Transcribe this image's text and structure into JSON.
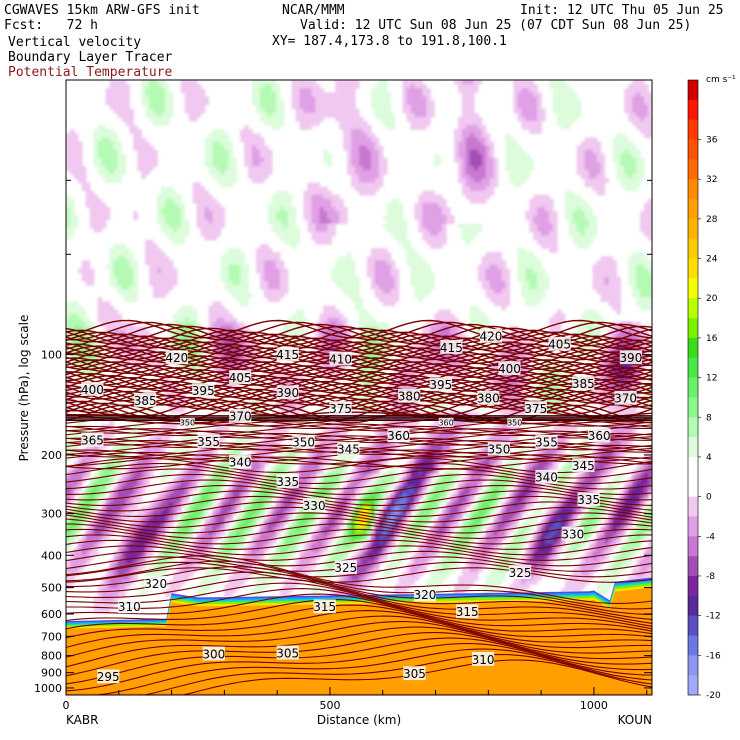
{
  "header": {
    "model_line": "CGWAVES 15km ARW-GFS init",
    "org": "NCAR/MMM",
    "init": "Init: 12 UTC Thu 05 Jun 25",
    "fcst": "Fcst:   72 h",
    "valid": "Valid: 12 UTC Sun 08 Jun 25 (07 CDT Sun 08 Jun 25)",
    "xy": "XY= 187.4,173.8 to 191.8,100.1",
    "field1": "Vertical velocity",
    "field2": "Boundary Layer Tracer",
    "field3": "Potential Temperature"
  },
  "colors": {
    "theta": "#7a0000",
    "field3_text": "#8b1a1a"
  },
  "chart_data": {
    "type": "heatmap",
    "title": "",
    "xlabel": "Distance (km)",
    "ylabel": "Pressure (hPa), log scale",
    "xlim": [
      0,
      1110
    ],
    "ylim": [
      1050,
      15
    ],
    "x_ticks": [
      "0",
      "500",
      "1000"
    ],
    "y_ticks": [
      "100",
      "200",
      "300",
      "400",
      "500",
      "600",
      "700",
      "800",
      "900",
      "1000"
    ],
    "endpoints": {
      "left": "KABR",
      "right": "KOUN"
    },
    "colorbar": {
      "unit": "cm s⁻¹",
      "labels": [
        "36",
        "32",
        "28",
        "24",
        "20",
        "16",
        "12",
        "8",
        "4",
        "0",
        "-4",
        "-8",
        "-12",
        "-16",
        "-20"
      ],
      "bins": [
        {
          "lo": 38,
          "hi": 40,
          "color": "#d00000"
        },
        {
          "lo": 36,
          "hi": 38,
          "color": "#ff1500"
        },
        {
          "lo": 34,
          "hi": 36,
          "color": "#ff3a00"
        },
        {
          "lo": 32,
          "hi": 34,
          "color": "#ff5200"
        },
        {
          "lo": 30,
          "hi": 32,
          "color": "#ff6a00"
        },
        {
          "lo": 28,
          "hi": 30,
          "color": "#ff8c00"
        },
        {
          "lo": 26,
          "hi": 28,
          "color": "#ffa000"
        },
        {
          "lo": 24,
          "hi": 26,
          "color": "#ffb300"
        },
        {
          "lo": 22,
          "hi": 24,
          "color": "#ffcc00"
        },
        {
          "lo": 20,
          "hi": 22,
          "color": "#ffe000"
        },
        {
          "lo": 18,
          "hi": 20,
          "color": "#f5ff00"
        },
        {
          "lo": 16,
          "hi": 18,
          "color": "#b8ff00"
        },
        {
          "lo": 14,
          "hi": 16,
          "color": "#7cf000"
        },
        {
          "lo": 12,
          "hi": 14,
          "color": "#3cdc1c"
        },
        {
          "lo": 10,
          "hi": 12,
          "color": "#48e848"
        },
        {
          "lo": 8,
          "hi": 10,
          "color": "#6cf06c"
        },
        {
          "lo": 6,
          "hi": 8,
          "color": "#8cf78c"
        },
        {
          "lo": 4,
          "hi": 6,
          "color": "#b4fab4"
        },
        {
          "lo": 2,
          "hi": 4,
          "color": "#dcfcdc"
        },
        {
          "lo": 0,
          "hi": 2,
          "color": "#ffffff"
        },
        {
          "lo": -2,
          "hi": 0,
          "color": "#ffffff"
        },
        {
          "lo": -4,
          "hi": -2,
          "color": "#f0c8f0"
        },
        {
          "lo": -6,
          "hi": -4,
          "color": "#e0a0e6"
        },
        {
          "lo": -8,
          "hi": -6,
          "color": "#c878d0"
        },
        {
          "lo": -10,
          "hi": -8,
          "color": "#a050b4"
        },
        {
          "lo": -12,
          "hi": -10,
          "color": "#7a289c"
        },
        {
          "lo": -14,
          "hi": -12,
          "color": "#5a2898"
        },
        {
          "lo": -16,
          "hi": -14,
          "color": "#5a50c0"
        },
        {
          "lo": -18,
          "hi": -16,
          "color": "#6a78e0"
        },
        {
          "lo": -20,
          "hi": -18,
          "color": "#8c96f0"
        },
        {
          "lo": -22,
          "hi": -20,
          "color": "#a0aaf8"
        }
      ]
    },
    "theta_labels": [
      {
        "v": "420",
        "x": 210,
        "p": 102
      },
      {
        "v": "415",
        "x": 420,
        "p": 100
      },
      {
        "v": "410",
        "x": 520,
        "p": 103
      },
      {
        "v": "415",
        "x": 730,
        "p": 95
      },
      {
        "v": "420",
        "x": 805,
        "p": 88
      },
      {
        "v": "405",
        "x": 935,
        "p": 93
      },
      {
        "v": "390",
        "x": 1070,
        "p": 102
      },
      {
        "v": "400",
        "x": 50,
        "p": 127
      },
      {
        "v": "385",
        "x": 150,
        "p": 137
      },
      {
        "v": "395",
        "x": 260,
        "p": 128
      },
      {
        "v": "405",
        "x": 330,
        "p": 117
      },
      {
        "v": "390",
        "x": 420,
        "p": 130
      },
      {
        "v": "380",
        "x": 650,
        "p": 133
      },
      {
        "v": "395",
        "x": 710,
        "p": 123
      },
      {
        "v": "400",
        "x": 840,
        "p": 110
      },
      {
        "v": "385",
        "x": 980,
        "p": 122
      },
      {
        "v": "370",
        "x": 1060,
        "p": 135
      },
      {
        "v": "375",
        "x": 520,
        "p": 145
      },
      {
        "v": "380",
        "x": 800,
        "p": 135
      },
      {
        "v": "375",
        "x": 890,
        "p": 145
      },
      {
        "v": "370",
        "x": 330,
        "p": 153
      },
      {
        "v": "360",
        "x": 630,
        "p": 175
      },
      {
        "v": "365",
        "x": 50,
        "p": 180
      },
      {
        "v": "355",
        "x": 270,
        "p": 182
      },
      {
        "v": "350",
        "x": 450,
        "p": 183
      },
      {
        "v": "345",
        "x": 535,
        "p": 192
      },
      {
        "v": "350",
        "x": 820,
        "p": 192
      },
      {
        "v": "355",
        "x": 910,
        "p": 183
      },
      {
        "v": "360",
        "x": 1010,
        "p": 175
      },
      {
        "v": "340",
        "x": 330,
        "p": 210
      },
      {
        "v": "345",
        "x": 980,
        "p": 215
      },
      {
        "v": "340",
        "x": 910,
        "p": 233
      },
      {
        "v": "335",
        "x": 420,
        "p": 240
      },
      {
        "v": "335",
        "x": 990,
        "p": 272
      },
      {
        "v": "330",
        "x": 470,
        "p": 283
      },
      {
        "v": "330",
        "x": 960,
        "p": 345
      },
      {
        "v": "325",
        "x": 530,
        "p": 435
      },
      {
        "v": "325",
        "x": 860,
        "p": 450
      },
      {
        "v": "320",
        "x": 170,
        "p": 485
      },
      {
        "v": "320",
        "x": 680,
        "p": 525
      },
      {
        "v": "310",
        "x": 120,
        "p": 570
      },
      {
        "v": "315",
        "x": 490,
        "p": 570
      },
      {
        "v": "315",
        "x": 760,
        "p": 590
      },
      {
        "v": "300",
        "x": 280,
        "p": 790
      },
      {
        "v": "305",
        "x": 420,
        "p": 785
      },
      {
        "v": "310",
        "x": 790,
        "p": 820
      },
      {
        "v": "305",
        "x": 660,
        "p": 905
      },
      {
        "v": "295",
        "x": 80,
        "p": 925
      }
    ],
    "theta_small_labels": [
      {
        "v": "350",
        "x": 230,
        "p": 160
      },
      {
        "v": "360",
        "x": 720,
        "p": 160
      },
      {
        "v": "350",
        "x": 850,
        "p": 160
      }
    ],
    "w_max_cm_s": 30,
    "w_min_cm_s": -14
  }
}
